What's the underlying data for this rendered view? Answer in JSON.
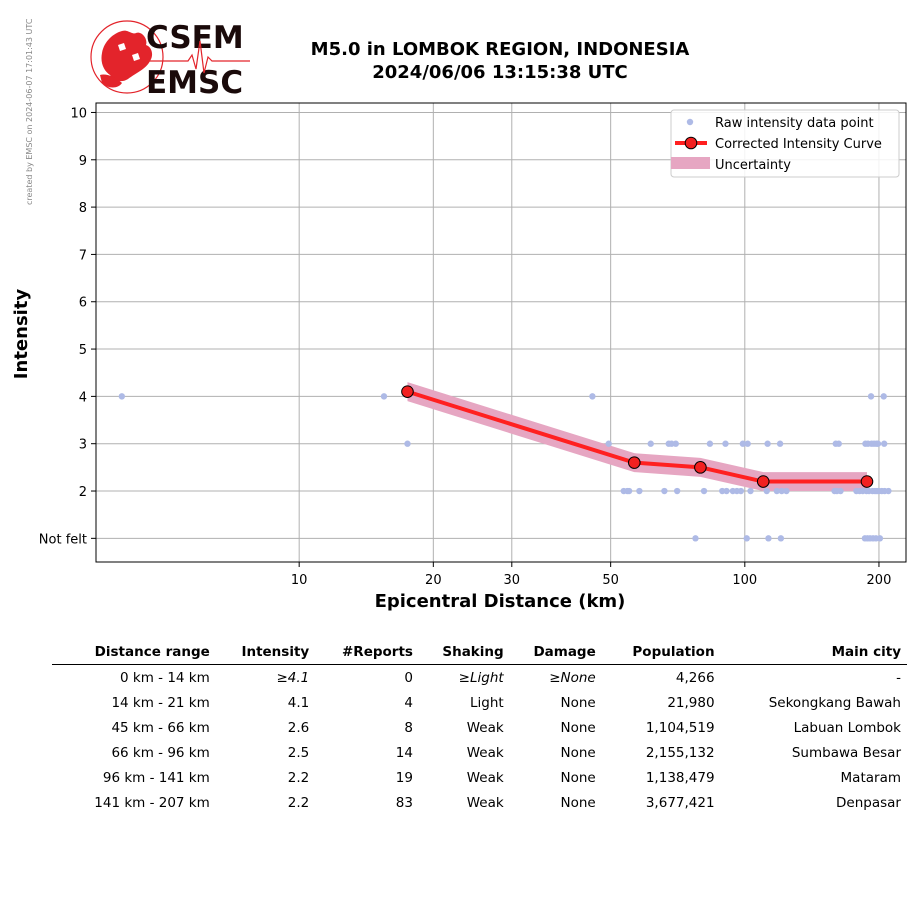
{
  "credit": "created by EMSC on 2024-06-07 17:01:43 UTC",
  "logo": {
    "top": "CSEM",
    "bottom": "EMSC",
    "red": "#e3242b",
    "dark": "#1a0a0a"
  },
  "title": {
    "line1": "M5.0 in LOMBOK REGION, INDONESIA",
    "line2": "2024/06/06 13:15:38 UTC"
  },
  "chart_data": {
    "type": "scatter",
    "xscale": "log",
    "xlim": [
      3.5,
      230
    ],
    "ylim": [
      0.5,
      10.2
    ],
    "grid": true,
    "xlabel": "Epicentral Distance (km)",
    "ylabel": "Intensity",
    "xticks": [
      10,
      20,
      30,
      50,
      100,
      200
    ],
    "yticks": [
      {
        "value": 1,
        "label": "Not felt"
      },
      {
        "value": 2,
        "label": "2"
      },
      {
        "value": 3,
        "label": "3"
      },
      {
        "value": 4,
        "label": "4"
      },
      {
        "value": 5,
        "label": "5"
      },
      {
        "value": 6,
        "label": "6"
      },
      {
        "value": 7,
        "label": "7"
      },
      {
        "value": 8,
        "label": "8"
      },
      {
        "value": 9,
        "label": "9"
      },
      {
        "value": 10,
        "label": "10"
      }
    ],
    "legend": {
      "position": "top-right",
      "entries": [
        "Raw intensity data point",
        "Corrected Intensity Curve",
        "Uncertainty"
      ]
    },
    "colors": {
      "points": "#aebae6",
      "curve": "#ff2020",
      "marker": "#f22020",
      "band": "#e6a6c2",
      "grid": "#b0b0b0"
    },
    "raw_points": [
      [
        4.0,
        4
      ],
      [
        15.5,
        4
      ],
      [
        17.5,
        3
      ],
      [
        45.5,
        4
      ],
      [
        49.5,
        3
      ],
      [
        53.5,
        2
      ],
      [
        54.5,
        2
      ],
      [
        55.0,
        2
      ],
      [
        58.0,
        2
      ],
      [
        61.5,
        3
      ],
      [
        66.0,
        2
      ],
      [
        67.5,
        3
      ],
      [
        68.5,
        3
      ],
      [
        70.0,
        3
      ],
      [
        70.5,
        2
      ],
      [
        77.5,
        1
      ],
      [
        81.0,
        2
      ],
      [
        83.5,
        3
      ],
      [
        89.0,
        2
      ],
      [
        90.5,
        3
      ],
      [
        91.0,
        2
      ],
      [
        94.0,
        2
      ],
      [
        96.0,
        2
      ],
      [
        98.0,
        2
      ],
      [
        99.0,
        3
      ],
      [
        101.0,
        1
      ],
      [
        101.5,
        3
      ],
      [
        103.0,
        2
      ],
      [
        112.0,
        2
      ],
      [
        112.5,
        3
      ],
      [
        113.0,
        1
      ],
      [
        118.0,
        2
      ],
      [
        120.0,
        3
      ],
      [
        120.5,
        1
      ],
      [
        121.0,
        2
      ],
      [
        124.0,
        2
      ],
      [
        159.0,
        2
      ],
      [
        160.0,
        3
      ],
      [
        161.0,
        2
      ],
      [
        162.5,
        3
      ],
      [
        164.0,
        2
      ],
      [
        178.0,
        2
      ],
      [
        181.0,
        2
      ],
      [
        184.0,
        2
      ],
      [
        186.0,
        1
      ],
      [
        186.5,
        3
      ],
      [
        187.5,
        2
      ],
      [
        188.5,
        1
      ],
      [
        189.0,
        3
      ],
      [
        190.0,
        2
      ],
      [
        191.0,
        1
      ],
      [
        192.0,
        4
      ],
      [
        192.5,
        3
      ],
      [
        193.5,
        2
      ],
      [
        194.0,
        1
      ],
      [
        195.0,
        3
      ],
      [
        196.0,
        2
      ],
      [
        197.0,
        1
      ],
      [
        197.5,
        3
      ],
      [
        198.0,
        2
      ],
      [
        199.0,
        3
      ],
      [
        200.0,
        2
      ],
      [
        201.0,
        1
      ],
      [
        203.0,
        2
      ],
      [
        205.0,
        4
      ],
      [
        205.5,
        3
      ],
      [
        206.0,
        2
      ],
      [
        210.0,
        2
      ]
    ],
    "curve": [
      [
        17.5,
        4.1
      ],
      [
        56.5,
        2.6
      ],
      [
        79.5,
        2.5
      ],
      [
        110.0,
        2.2
      ],
      [
        188.0,
        2.2
      ]
    ],
    "uncertainty": 0.2
  },
  "table": {
    "headers": [
      "Distance range",
      "Intensity",
      "#Reports",
      "Shaking",
      "Damage",
      "Population",
      "Main city"
    ],
    "rows": [
      {
        "range": "0 km -   14 km",
        "intensity": "≥4.1",
        "reports": "0",
        "shaking": "≥Light",
        "damage": "≥None",
        "population": "4,266",
        "city": "-"
      },
      {
        "range": "14 km -   21 km",
        "intensity": "4.1",
        "reports": "4",
        "shaking": "Light",
        "damage": "None",
        "population": "21,980",
        "city": "Sekongkang Bawah"
      },
      {
        "range": "45 km -   66 km",
        "intensity": "2.6",
        "reports": "8",
        "shaking": "Weak",
        "damage": "None",
        "population": "1,104,519",
        "city": "Labuan Lombok"
      },
      {
        "range": "66 km -   96 km",
        "intensity": "2.5",
        "reports": "14",
        "shaking": "Weak",
        "damage": "None",
        "population": "2,155,132",
        "city": "Sumbawa Besar"
      },
      {
        "range": "96 km -  141 km",
        "intensity": "2.2",
        "reports": "19",
        "shaking": "Weak",
        "damage": "None",
        "population": "1,138,479",
        "city": "Mataram"
      },
      {
        "range": "141 km -  207 km",
        "intensity": "2.2",
        "reports": "83",
        "shaking": "Weak",
        "damage": "None",
        "population": "3,677,421",
        "city": "Denpasar"
      }
    ]
  }
}
